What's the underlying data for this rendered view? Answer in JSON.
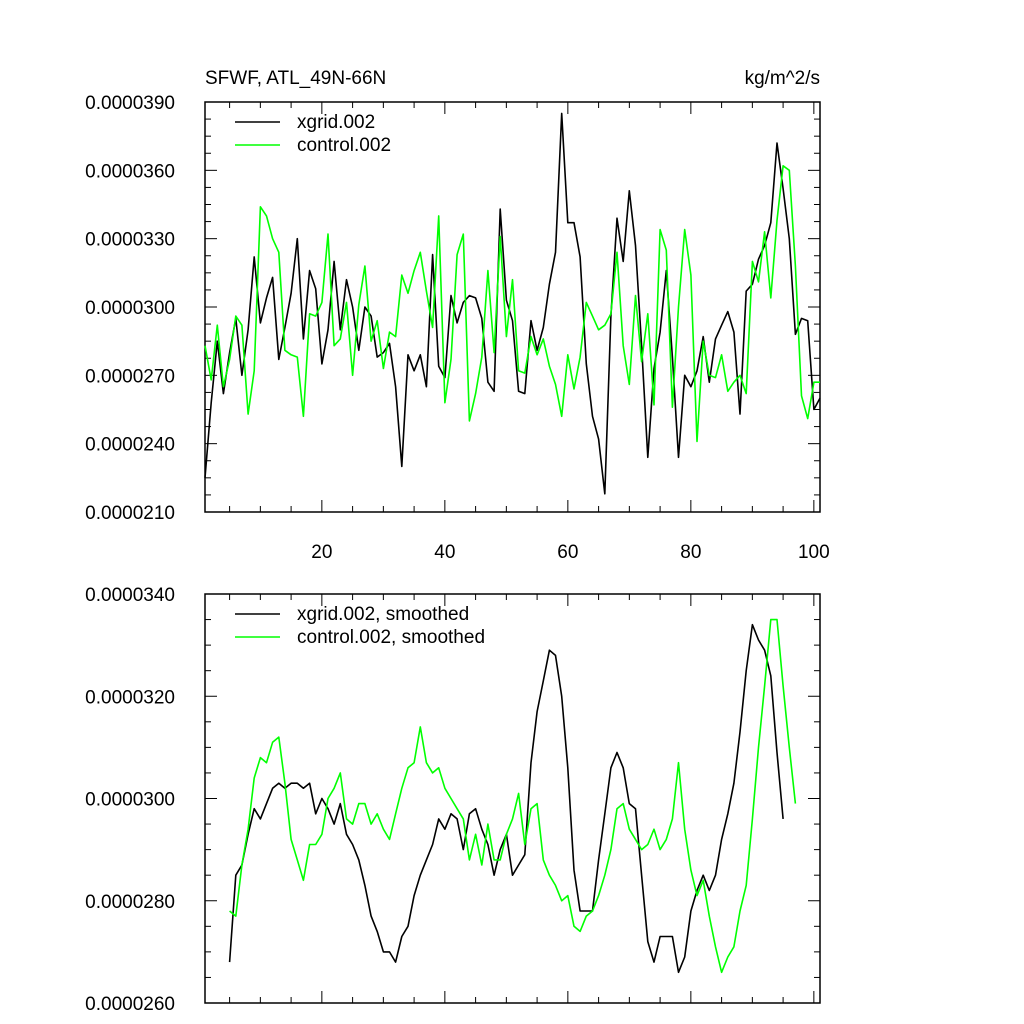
{
  "chart_data": [
    {
      "type": "line",
      "title": "SFWF, ATL_49N-66N",
      "units": "kg/m^2/s",
      "xlim": [
        1,
        101
      ],
      "ylim": [
        2.1e-05,
        3.9e-05
      ],
      "yticks": [
        "0.0000210",
        "0.0000240",
        "0.0000270",
        "0.0000300",
        "0.0000330",
        "0.0000360",
        "0.0000390"
      ],
      "yticks_values": [
        2.1e-05,
        2.4e-05,
        2.7e-05,
        3e-05,
        3.3e-05,
        3.6e-05,
        3.9e-05
      ],
      "xticks": [
        "20",
        "40",
        "60",
        "80",
        "100"
      ],
      "xticks_values": [
        20,
        40,
        60,
        80,
        100
      ],
      "legend_position": "top-left",
      "series": [
        {
          "name": "xgrid.002",
          "color": "#000000",
          "x_start": 1,
          "values": [
            2.25e-05,
            2.58e-05,
            2.85e-05,
            2.62e-05,
            2.8e-05,
            2.95e-05,
            2.7e-05,
            2.9e-05,
            3.22e-05,
            2.93e-05,
            3.04e-05,
            3.13e-05,
            2.77e-05,
            2.91e-05,
            3.06e-05,
            3.3e-05,
            2.86e-05,
            3.16e-05,
            3.08e-05,
            2.75e-05,
            2.9e-05,
            3.2e-05,
            2.9e-05,
            3.12e-05,
            3e-05,
            2.81e-05,
            3e-05,
            2.96e-05,
            2.78e-05,
            2.8e-05,
            2.84e-05,
            2.65e-05,
            2.3e-05,
            2.79e-05,
            2.72e-05,
            2.79e-05,
            2.65e-05,
            3.23e-05,
            2.74e-05,
            2.69e-05,
            3.05e-05,
            2.93e-05,
            3.02e-05,
            3.05e-05,
            3.04e-05,
            2.95e-05,
            2.67e-05,
            2.63e-05,
            3.43e-05,
            3.03e-05,
            2.94e-05,
            2.63e-05,
            2.62e-05,
            2.94e-05,
            2.81e-05,
            2.91e-05,
            3.1e-05,
            3.24e-05,
            3.85e-05,
            3.37e-05,
            3.37e-05,
            3.22e-05,
            2.75e-05,
            2.52e-05,
            2.42e-05,
            2.18e-05,
            2.96e-05,
            3.39e-05,
            3.2e-05,
            3.51e-05,
            3.27e-05,
            2.83e-05,
            2.34e-05,
            2.73e-05,
            2.89e-05,
            3.16e-05,
            2.78e-05,
            2.34e-05,
            2.7e-05,
            2.65e-05,
            2.72e-05,
            2.87e-05,
            2.67e-05,
            2.86e-05,
            2.92e-05,
            2.98e-05,
            2.89e-05,
            2.53e-05,
            3.07e-05,
            3.1e-05,
            3.21e-05,
            3.27e-05,
            3.37e-05,
            3.72e-05,
            3.52e-05,
            3.3e-05,
            2.88e-05,
            2.95e-05,
            2.94e-05,
            2.55e-05,
            2.6e-05
          ]
        },
        {
          "name": "control.002",
          "color": "#00ff00",
          "x_start": 1,
          "values": [
            2.83e-05,
            2.68e-05,
            2.92e-05,
            2.65e-05,
            2.77e-05,
            2.96e-05,
            2.92e-05,
            2.53e-05,
            2.72e-05,
            3.44e-05,
            3.4e-05,
            3.3e-05,
            3.24e-05,
            2.81e-05,
            2.79e-05,
            2.78e-05,
            2.52e-05,
            2.97e-05,
            2.96e-05,
            3.02e-05,
            3.32e-05,
            2.83e-05,
            2.86e-05,
            3.02e-05,
            2.7e-05,
            3.01e-05,
            3.18e-05,
            2.85e-05,
            2.94e-05,
            2.73e-05,
            2.89e-05,
            2.87e-05,
            3.14e-05,
            3.06e-05,
            3.16e-05,
            3.24e-05,
            3.07e-05,
            2.91e-05,
            3.4e-05,
            2.58e-05,
            2.77e-05,
            3.23e-05,
            3.32e-05,
            2.5e-05,
            2.62e-05,
            2.78e-05,
            3.16e-05,
            2.8e-05,
            3.31e-05,
            2.87e-05,
            3.12e-05,
            2.72e-05,
            2.71e-05,
            2.87e-05,
            2.79e-05,
            2.86e-05,
            2.74e-05,
            2.66e-05,
            2.52e-05,
            2.79e-05,
            2.64e-05,
            2.78e-05,
            3.02e-05,
            2.96e-05,
            2.9e-05,
            2.92e-05,
            2.97e-05,
            3.24e-05,
            2.83e-05,
            2.66e-05,
            3.05e-05,
            2.76e-05,
            2.97e-05,
            2.57e-05,
            3.34e-05,
            3.25e-05,
            2.56e-05,
            3e-05,
            3.34e-05,
            3.14e-05,
            2.41e-05,
            2.85e-05,
            2.7e-05,
            2.69e-05,
            2.79e-05,
            2.63e-05,
            2.67e-05,
            2.7e-05,
            2.62e-05,
            3.2e-05,
            3.11e-05,
            3.33e-05,
            3.04e-05,
            3.38e-05,
            3.62e-05,
            3.6e-05,
            3.18e-05,
            2.61e-05,
            2.51e-05,
            2.67e-05,
            2.67e-05
          ]
        }
      ]
    },
    {
      "type": "line",
      "xlim": [
        1,
        101
      ],
      "ylim": [
        2.6e-05,
        3.4e-05
      ],
      "yticks": [
        "0.0000260",
        "0.0000280",
        "0.0000300",
        "0.0000320",
        "0.0000340"
      ],
      "yticks_values": [
        2.6e-05,
        2.8e-05,
        3e-05,
        3.2e-05,
        3.4e-05
      ],
      "xticks_values": [
        20,
        40,
        60,
        80,
        100
      ],
      "legend_position": "top-left",
      "series": [
        {
          "name": "xgrid.002, smoothed",
          "color": "#000000",
          "x_start": 5,
          "values": [
            2.68e-05,
            2.85e-05,
            2.87e-05,
            2.93e-05,
            2.98e-05,
            2.96e-05,
            2.99e-05,
            3.02e-05,
            3.03e-05,
            3.02e-05,
            3.03e-05,
            3.03e-05,
            3.02e-05,
            3.03e-05,
            2.97e-05,
            3e-05,
            2.98e-05,
            2.95e-05,
            2.99e-05,
            2.93e-05,
            2.91e-05,
            2.88e-05,
            2.83e-05,
            2.77e-05,
            2.74e-05,
            2.7e-05,
            2.7e-05,
            2.68e-05,
            2.73e-05,
            2.75e-05,
            2.81e-05,
            2.85e-05,
            2.88e-05,
            2.91e-05,
            2.96e-05,
            2.94e-05,
            2.97e-05,
            2.96e-05,
            2.9e-05,
            2.97e-05,
            2.98e-05,
            2.94e-05,
            2.91e-05,
            2.85e-05,
            2.9e-05,
            2.93e-05,
            2.85e-05,
            2.87e-05,
            2.89e-05,
            3.07e-05,
            3.17e-05,
            3.23e-05,
            3.29e-05,
            3.28e-05,
            3.2e-05,
            3.06e-05,
            2.86e-05,
            2.78e-05,
            2.78e-05,
            2.78e-05,
            2.88e-05,
            2.97e-05,
            3.06e-05,
            3.09e-05,
            3.06e-05,
            2.99e-05,
            2.98e-05,
            2.85e-05,
            2.72e-05,
            2.68e-05,
            2.73e-05,
            2.73e-05,
            2.73e-05,
            2.66e-05,
            2.69e-05,
            2.78e-05,
            2.82e-05,
            2.85e-05,
            2.82e-05,
            2.85e-05,
            2.92e-05,
            2.97e-05,
            3.03e-05,
            3.13e-05,
            3.25e-05,
            3.34e-05,
            3.31e-05,
            3.29e-05,
            3.24e-05,
            3.09e-05,
            2.96e-05
          ]
        },
        {
          "name": "control.002, smoothed",
          "color": "#00ff00",
          "x_start": 5,
          "values": [
            2.78e-05,
            2.77e-05,
            2.87e-05,
            2.94e-05,
            3.04e-05,
            3.08e-05,
            3.07e-05,
            3.11e-05,
            3.12e-05,
            3.03e-05,
            2.92e-05,
            2.88e-05,
            2.84e-05,
            2.91e-05,
            2.91e-05,
            2.93e-05,
            3e-05,
            3.02e-05,
            3.05e-05,
            2.96e-05,
            2.95e-05,
            2.99e-05,
            2.99e-05,
            2.95e-05,
            2.97e-05,
            2.94e-05,
            2.92e-05,
            2.97e-05,
            3.02e-05,
            3.06e-05,
            3.07e-05,
            3.14e-05,
            3.07e-05,
            3.05e-05,
            3.06e-05,
            3.02e-05,
            3e-05,
            2.98e-05,
            2.96e-05,
            2.88e-05,
            2.93e-05,
            2.87e-05,
            2.95e-05,
            2.88e-05,
            2.88e-05,
            2.93e-05,
            2.96e-05,
            3.01e-05,
            2.91e-05,
            2.98e-05,
            2.99e-05,
            2.88e-05,
            2.85e-05,
            2.83e-05,
            2.8e-05,
            2.81e-05,
            2.75e-05,
            2.74e-05,
            2.77e-05,
            2.78e-05,
            2.81e-05,
            2.85e-05,
            2.9e-05,
            2.98e-05,
            2.99e-05,
            2.94e-05,
            2.92e-05,
            2.9e-05,
            2.91e-05,
            2.94e-05,
            2.9e-05,
            2.92e-05,
            2.96e-05,
            3.07e-05,
            2.94e-05,
            2.86e-05,
            2.81e-05,
            2.84e-05,
            2.77e-05,
            2.71e-05,
            2.66e-05,
            2.69e-05,
            2.71e-05,
            2.78e-05,
            2.83e-05,
            2.96e-05,
            3.1e-05,
            3.22e-05,
            3.35e-05,
            3.35e-05,
            3.22e-05,
            3.1e-05,
            2.99e-05
          ]
        }
      ]
    }
  ]
}
